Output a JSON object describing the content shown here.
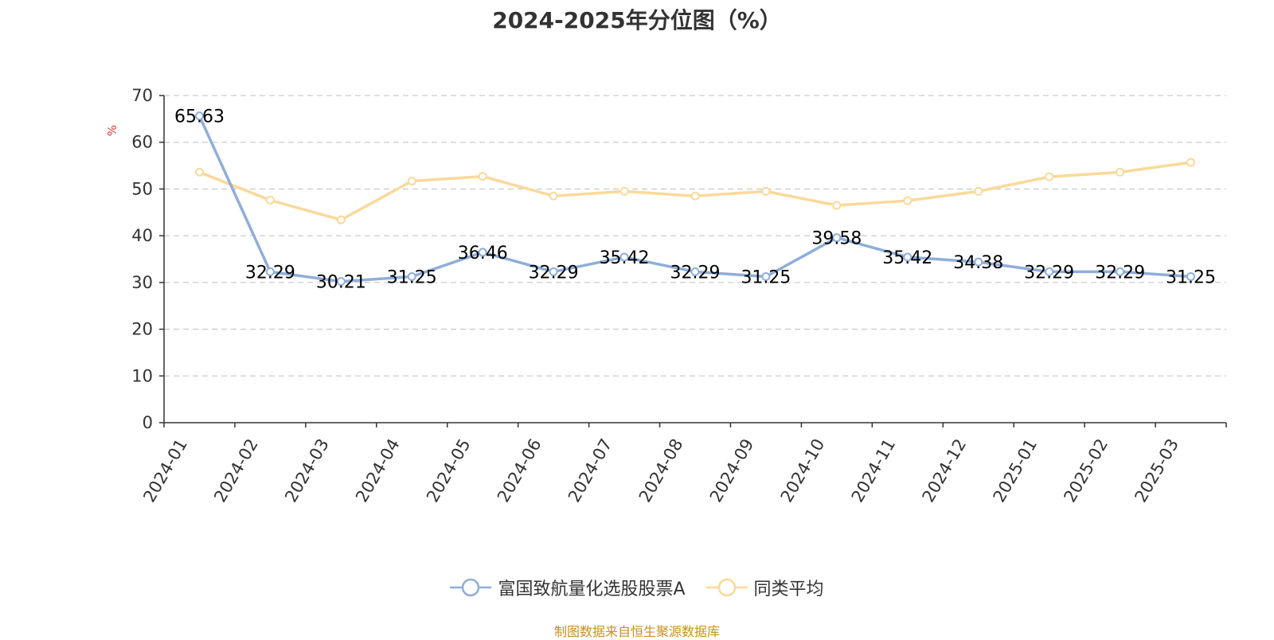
{
  "chart_data": {
    "type": "line",
    "title": "2024-2025年分位图（%）",
    "ylabel": "%",
    "xlabel": "",
    "categories": [
      "2024-01",
      "2024-02",
      "2024-03",
      "2024-04",
      "2024-05",
      "2024-06",
      "2024-07",
      "2024-08",
      "2024-09",
      "2024-10",
      "2024-11",
      "2024-12",
      "2025-01",
      "2025-02",
      "2025-03"
    ],
    "ylim": [
      0,
      70
    ],
    "yticks": [
      0,
      10,
      20,
      30,
      40,
      50,
      60,
      70
    ],
    "grid": true,
    "legend_position": "bottom",
    "series": [
      {
        "name": "富国致航量化选股股票A",
        "color": "#8eaedb",
        "values": [
          65.63,
          32.29,
          30.21,
          31.25,
          36.46,
          32.29,
          35.42,
          32.29,
          31.25,
          39.58,
          35.42,
          34.38,
          32.29,
          32.29,
          31.25
        ],
        "labels": [
          "65.63",
          "32.29",
          "30.21",
          "31.25",
          "36.46",
          "32.29",
          "35.42",
          "32.29",
          "31.25",
          "39.58",
          "35.42",
          "34.38",
          "32.29",
          "32.29",
          "31.25"
        ]
      },
      {
        "name": "同类平均",
        "color": "#fad999",
        "values": [
          53.6,
          47.6,
          43.4,
          51.7,
          52.7,
          48.5,
          49.5,
          48.5,
          49.5,
          46.5,
          47.5,
          49.5,
          52.6,
          53.6,
          55.7
        ]
      }
    ]
  },
  "source": {
    "text": "制图数据来自恒生聚源数据库",
    "color": "#c8901a"
  },
  "colors": {
    "ylabel": "#e53935"
  }
}
